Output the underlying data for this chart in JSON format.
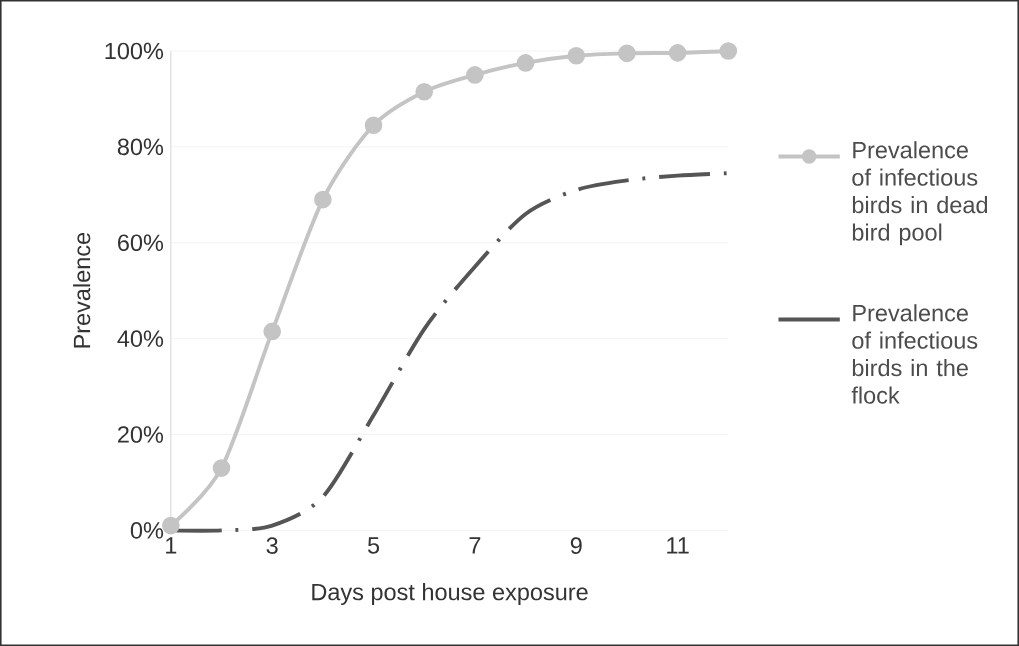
{
  "chart_data": {
    "type": "line",
    "xlabel": "Days post house exposure",
    "ylabel": "Prevalence",
    "x": [
      1,
      2,
      3,
      4,
      5,
      6,
      7,
      8,
      9,
      10,
      11,
      12
    ],
    "series": [
      {
        "name": "Prevalence of infectious birds in dead bird pool",
        "color": "#c4c4c4",
        "marker": "circle",
        "line_style": "solid",
        "values": [
          1,
          13,
          41.5,
          69,
          84.5,
          91.5,
          95,
          97.5,
          99,
          99.5,
          99.6,
          100
        ]
      },
      {
        "name": "Prevalence of infectious birds in the flock",
        "color": "#555555",
        "marker": "none",
        "line_style": "dashed",
        "values": [
          0,
          0,
          1,
          7,
          24,
          42,
          55,
          66,
          71,
          73,
          74,
          74.5
        ]
      }
    ],
    "xlim": [
      1,
      12
    ],
    "ylim": [
      0,
      100
    ],
    "xticks": [
      1,
      3,
      5,
      7,
      9,
      11
    ],
    "yticks": [
      {
        "value": 0,
        "label": "0%"
      },
      {
        "value": 20,
        "label": "20%"
      },
      {
        "value": 40,
        "label": "40%"
      },
      {
        "value": 60,
        "label": "60%"
      },
      {
        "value": 80,
        "label": "80%"
      },
      {
        "value": 100,
        "label": "100%"
      }
    ],
    "grid": "y",
    "legend": "right"
  }
}
